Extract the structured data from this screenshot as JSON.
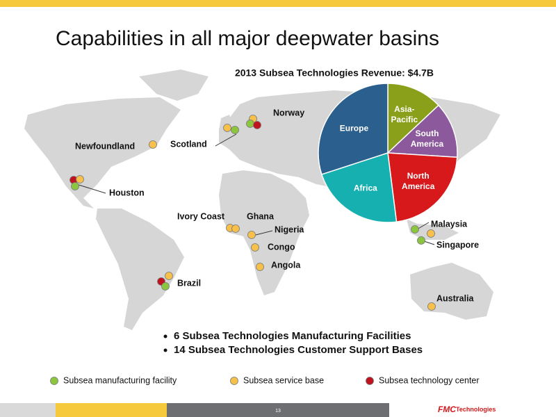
{
  "title": "Capabilities in all major deepwater basins",
  "chart_data": {
    "type": "pie",
    "title": "2013 Subsea Technologies Revenue: $4.7B",
    "categories": [
      "Asia-Pacific",
      "South America",
      "North America",
      "Africa",
      "Europe"
    ],
    "values": [
      13,
      13,
      22,
      22,
      30
    ],
    "colors": [
      "#8a9f1a",
      "#8c5a9c",
      "#d7191c",
      "#17b0b0",
      "#2b5f8e"
    ]
  },
  "locations": [
    {
      "label": "Norway",
      "dots": [
        "base",
        "manufacturing",
        "technology"
      ]
    },
    {
      "label": "Scotland",
      "dots": [
        "base",
        "manufacturing"
      ]
    },
    {
      "label": "Newfoundland",
      "dots": [
        "base"
      ]
    },
    {
      "label": "Houston",
      "dots": [
        "technology",
        "base",
        "manufacturing"
      ]
    },
    {
      "label": "Ivory Coast",
      "dots": [
        "base"
      ]
    },
    {
      "label": "Ghana",
      "dots": [
        "base"
      ]
    },
    {
      "label": "Nigeria",
      "dots": [
        "base"
      ]
    },
    {
      "label": "Congo",
      "dots": [
        "base"
      ]
    },
    {
      "label": "Angola",
      "dots": [
        "base"
      ]
    },
    {
      "label": "Brazil",
      "dots": [
        "base",
        "technology",
        "manufacturing"
      ]
    },
    {
      "label": "Malaysia",
      "dots": [
        "manufacturing",
        "base"
      ]
    },
    {
      "label": "Singapore",
      "dots": [
        "manufacturing"
      ]
    },
    {
      "label": "Australia",
      "dots": [
        "base"
      ]
    }
  ],
  "bullets": [
    "6 Subsea Technologies Manufacturing Facilities",
    "14 Subsea Technologies Customer Support Bases"
  ],
  "legend": [
    {
      "kind": "manufacturing",
      "label": "Subsea manufacturing facility",
      "color": "#8cc63f"
    },
    {
      "kind": "base",
      "label": "Subsea service base",
      "color": "#f7c04a"
    },
    {
      "kind": "technology",
      "label": "Subsea technology center",
      "color": "#c1121f"
    }
  ],
  "footer": {
    "page": "13",
    "logo_mark": "FMC",
    "logo_text": "Technologies"
  }
}
